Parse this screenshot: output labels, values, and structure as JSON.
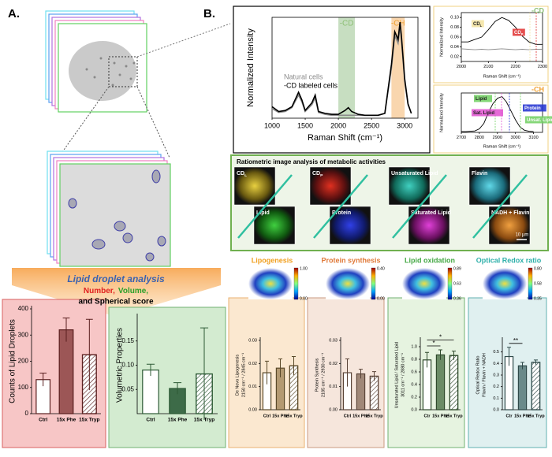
{
  "panel_a": {
    "label": "A.",
    "analysis_title": "Lipid droplet analysis",
    "number_label": "Number,",
    "volume_label": "Volume,",
    "rest_label": "and Spherical score"
  },
  "panel_b": {
    "label": "B.",
    "ratiometric_title": "Ratiometric image analysis of metabolic activities",
    "images": [
      {
        "label": "CD",
        "sub": "L"
      },
      {
        "label": "Lipid"
      },
      {
        "label": "CD",
        "sub": "P"
      },
      {
        "label": "Protein"
      },
      {
        "label": "Unsaturated Lipid"
      },
      {
        "label": "Saturated Lipid"
      },
      {
        "label": "Flavin"
      },
      {
        "label": "NADH + Flavin"
      }
    ],
    "scale_bar": "10 µm",
    "maps": [
      {
        "title": "Lipogenesis",
        "color": "#f0a020",
        "ticks": [
          "1.00",
          "0.00"
        ]
      },
      {
        "title": "Protein synthesis",
        "color": "#e07a3a",
        "ticks": [
          "0.40",
          "0.00"
        ]
      },
      {
        "title": "Lipid oxidation",
        "color": "#45a845",
        "ticks": [
          "0.89",
          "0.63",
          "0.36"
        ]
      },
      {
        "title": "Optical Redox ratio",
        "color": "#2fb0aa",
        "ticks": [
          "0.80",
          "0.58",
          "0.35"
        ]
      }
    ]
  },
  "chart_data": [
    {
      "type": "bar",
      "ylabel": [
        "Counts of Lipid Droplets"
      ],
      "categories": [
        "Ctrl",
        "15x Phe",
        "15x Tryp"
      ],
      "values": [
        130,
        320,
        225
      ],
      "errors": [
        25,
        45,
        135
      ],
      "colors": [
        "#ffffff",
        "#9c5656",
        "#ffffff"
      ],
      "patterns": [
        "solid",
        "solid",
        "hatch"
      ],
      "edge": "#5a1f1f",
      "ylim": [
        0,
        400
      ],
      "yticks": [
        0,
        100,
        200,
        300,
        400
      ]
    },
    {
      "type": "bar",
      "ylabel": [
        "Volumetric Properties"
      ],
      "categories": [
        "Ctrl",
        "15x Phe",
        "15x Tryp"
      ],
      "values": [
        0.09,
        0.052,
        0.082
      ],
      "errors": [
        0.012,
        0.012,
        0.095
      ],
      "colors": [
        "#ffffff",
        "#3d6b48",
        "#ffffff"
      ],
      "patterns": [
        "solid",
        "solid",
        "hatch"
      ],
      "edge": "#2d5a35",
      "ylim": [
        0,
        0.2
      ],
      "yticks": [
        0.05,
        {
          "value": 0.1,
          "label": "0.10"
        },
        0.15
      ]
    },
    {
      "type": "bar",
      "ylabel": [
        "De Novo Lipogenesis",
        "2150 cm⁻¹ / 2845 cm⁻¹"
      ],
      "categories": [
        "Ctrl",
        "15x Phe",
        "15x Tryp"
      ],
      "values": [
        0.016,
        0.018,
        0.019
      ],
      "errors": [
        0.005,
        0.004,
        0.004
      ],
      "colors": [
        "#ffffff",
        "#b49a72",
        "#ffffff"
      ],
      "patterns": [
        "solid",
        "solid",
        "hatch"
      ],
      "edge": "#5b4a2a",
      "ylim": [
        0,
        0.03
      ],
      "yticks": [
        {
          "value": 0,
          "label": "0.00"
        },
        0.01,
        0.02,
        0.03
      ]
    },
    {
      "type": "bar",
      "ylabel": [
        "Protein Synthesis",
        "2185 cm⁻¹ / 2930 cm⁻¹"
      ],
      "categories": [
        "Ctrl",
        "15x Phe",
        "15x Tryp"
      ],
      "values": [
        0.016,
        0.0155,
        0.0145
      ],
      "errors": [
        0.006,
        0.002,
        0.002
      ],
      "colors": [
        "#ffffff",
        "#a08878",
        "#ffffff"
      ],
      "patterns": [
        "solid",
        "solid",
        "hatch"
      ],
      "edge": "#5a4438",
      "ylim": [
        0,
        0.03
      ],
      "yticks": [
        {
          "value": 0,
          "label": "0.00"
        },
        0.01,
        0.02,
        0.03
      ]
    },
    {
      "type": "bar",
      "ylabel": [
        "Unsaturated Lipid / Saturated Lipid",
        "3011 cm⁻¹ / 2880 cm⁻¹"
      ],
      "categories": [
        "Ctr",
        "15x Phe",
        "15x Tryp"
      ],
      "values": [
        0.79,
        0.87,
        0.86
      ],
      "errors": [
        0.12,
        0.08,
        0.07
      ],
      "colors": [
        "#ffffff",
        "#6b8c66",
        "#ffffff"
      ],
      "patterns": [
        "solid",
        "solid",
        "hatch"
      ],
      "edge": "#2f4a2c",
      "ylim": [
        0,
        1.1
      ],
      "yticks": [
        {
          "value": 0,
          "label": "0.0"
        },
        0.2,
        0.4,
        0.6,
        0.8,
        {
          "value": 1,
          "label": "1.0"
        }
      ],
      "significance": [
        {
          "label": "*",
          "between": [
            "Ctr",
            "15x Phe"
          ]
        },
        {
          "label": "*",
          "between": [
            "Ctr",
            "15x Tryp"
          ]
        }
      ]
    },
    {
      "type": "bar",
      "ylabel": [
        "Optical Redox Ratio",
        "Flavin / Flavin + NADH"
      ],
      "categories": [
        "Ctr",
        "15x Phe",
        "15x Tryp"
      ],
      "values": [
        0.46,
        0.38,
        0.41
      ],
      "errors": [
        0.08,
        0.03,
        0.02
      ],
      "colors": [
        "#ffffff",
        "#6a8a8a",
        "#ffffff"
      ],
      "patterns": [
        "solid",
        "solid",
        "hatch"
      ],
      "edge": "#2f4a4a",
      "ylim": [
        0,
        0.6
      ],
      "yticks": [
        {
          "value": 0,
          "label": "0.0"
        },
        0.1,
        0.2,
        0.3,
        0.4,
        0.5
      ],
      "significance": [
        {
          "label": "**",
          "between": [
            "Ctr",
            "15x Phe"
          ]
        }
      ]
    },
    {
      "type": "line",
      "xlabel": "Raman Shift (cm⁻¹)",
      "ylabel": "Normalized Intensity",
      "xlim": [
        1000,
        3200
      ],
      "xticks": [
        1000,
        1500,
        2000,
        2500,
        3000
      ],
      "ylim": [
        0,
        1.05
      ],
      "x": [
        1000,
        1100,
        1200,
        1300,
        1400,
        1450,
        1500,
        1600,
        1650,
        1700,
        1800,
        1900,
        2000,
        2100,
        2150,
        2200,
        2300,
        2400,
        2500,
        2600,
        2700,
        2800,
        2850,
        2900,
        2930,
        2950,
        3000,
        3050,
        3100
      ],
      "series": [
        {
          "name": "Natural cells",
          "color": "#8a8a8a",
          "values": [
            0.1,
            0.06,
            0.07,
            0.11,
            0.24,
            0.17,
            0.07,
            0.14,
            0.21,
            0.06,
            0.04,
            0.03,
            0.03,
            0.03,
            0.03,
            0.03,
            0.03,
            0.03,
            0.03,
            0.03,
            0.05,
            0.52,
            0.86,
            0.78,
            0.95,
            0.82,
            0.38,
            0.14,
            0.05
          ]
        },
        {
          "name": "-CD labeled cells",
          "color": "#000000",
          "values": [
            0.12,
            0.07,
            0.08,
            0.12,
            0.27,
            0.19,
            0.08,
            0.16,
            0.24,
            0.07,
            0.05,
            0.04,
            0.04,
            0.08,
            0.11,
            0.07,
            0.04,
            0.03,
            0.03,
            0.03,
            0.05,
            0.56,
            0.9,
            0.82,
            1.0,
            0.86,
            0.41,
            0.15,
            0.05
          ]
        }
      ],
      "bands": [
        {
          "label": "-CD",
          "range": [
            2000,
            2250
          ],
          "color": "#c7dec1",
          "label_color": "#8cbf75"
        },
        {
          "label": "-CH",
          "range": [
            2800,
            3000
          ],
          "color": "#f9d6ae",
          "label_color": "#f0a030"
        }
      ]
    },
    {
      "type": "line",
      "tag": {
        "text": "-CD",
        "color": "#8cbf75"
      },
      "xlabel": "Raman Shift (cm⁻¹)",
      "ylabel": "Normalized Intensity",
      "xlim": [
        2000,
        2300
      ],
      "xticks": [
        2000,
        2100,
        2200,
        2300
      ],
      "ylim": [
        0.01,
        0.11
      ],
      "yticks": [
        0.02,
        0.04,
        0.06,
        0.08,
        {
          "value": 0.1,
          "label": "0.10"
        }
      ],
      "x": [
        2000,
        2025,
        2050,
        2075,
        2100,
        2125,
        2150,
        2175,
        2200,
        2225,
        2250,
        2275,
        2300
      ],
      "series": [
        {
          "color": "#000000",
          "values": [
            0.05,
            0.05,
            0.055,
            0.06,
            0.075,
            0.092,
            0.1,
            0.094,
            0.08,
            0.062,
            0.05,
            0.045,
            0.045
          ]
        },
        {
          "color": "#8a8a8a",
          "values": [
            0.036,
            0.035,
            0.034,
            0.035,
            0.034,
            0.035,
            0.036,
            0.035,
            0.034,
            0.035,
            0.034,
            0.035,
            0.035
          ]
        }
      ],
      "annotations": [
        {
          "label": "CD",
          "sub": "L",
          "color": "#f3e3a0"
        },
        {
          "label": "CD",
          "sub": "P",
          "color": "#e03030"
        }
      ]
    },
    {
      "type": "line",
      "tag": {
        "text": "-CH",
        "color": "#f0a030"
      },
      "xlabel": "Raman Shift (cm⁻¹)",
      "ylabel": "Normalized Intensity",
      "xlim": [
        2700,
        3150
      ],
      "xticks": [
        2700,
        2800,
        2900,
        3000,
        3100
      ],
      "ylim": [
        0,
        1.1
      ],
      "x": [
        2700,
        2725,
        2750,
        2775,
        2800,
        2825,
        2850,
        2875,
        2900,
        2925,
        2950,
        2975,
        3000,
        3025,
        3050,
        3075,
        3100
      ],
      "series": [
        {
          "color": "#000000",
          "values": [
            0.02,
            0.02,
            0.03,
            0.04,
            0.1,
            0.25,
            0.55,
            0.8,
            0.95,
            1.0,
            0.85,
            0.6,
            0.35,
            0.15,
            0.06,
            0.03,
            0.02
          ]
        }
      ],
      "annotations": [
        {
          "label": "Lipid",
          "color": "#6fcf5f"
        },
        {
          "label": "Sat. Lipid",
          "color": "#e050d0"
        },
        {
          "label": "Protein",
          "color": "#2030d0"
        },
        {
          "label": "Unsat. Lipid",
          "color": "#6fcf5f"
        }
      ]
    }
  ]
}
